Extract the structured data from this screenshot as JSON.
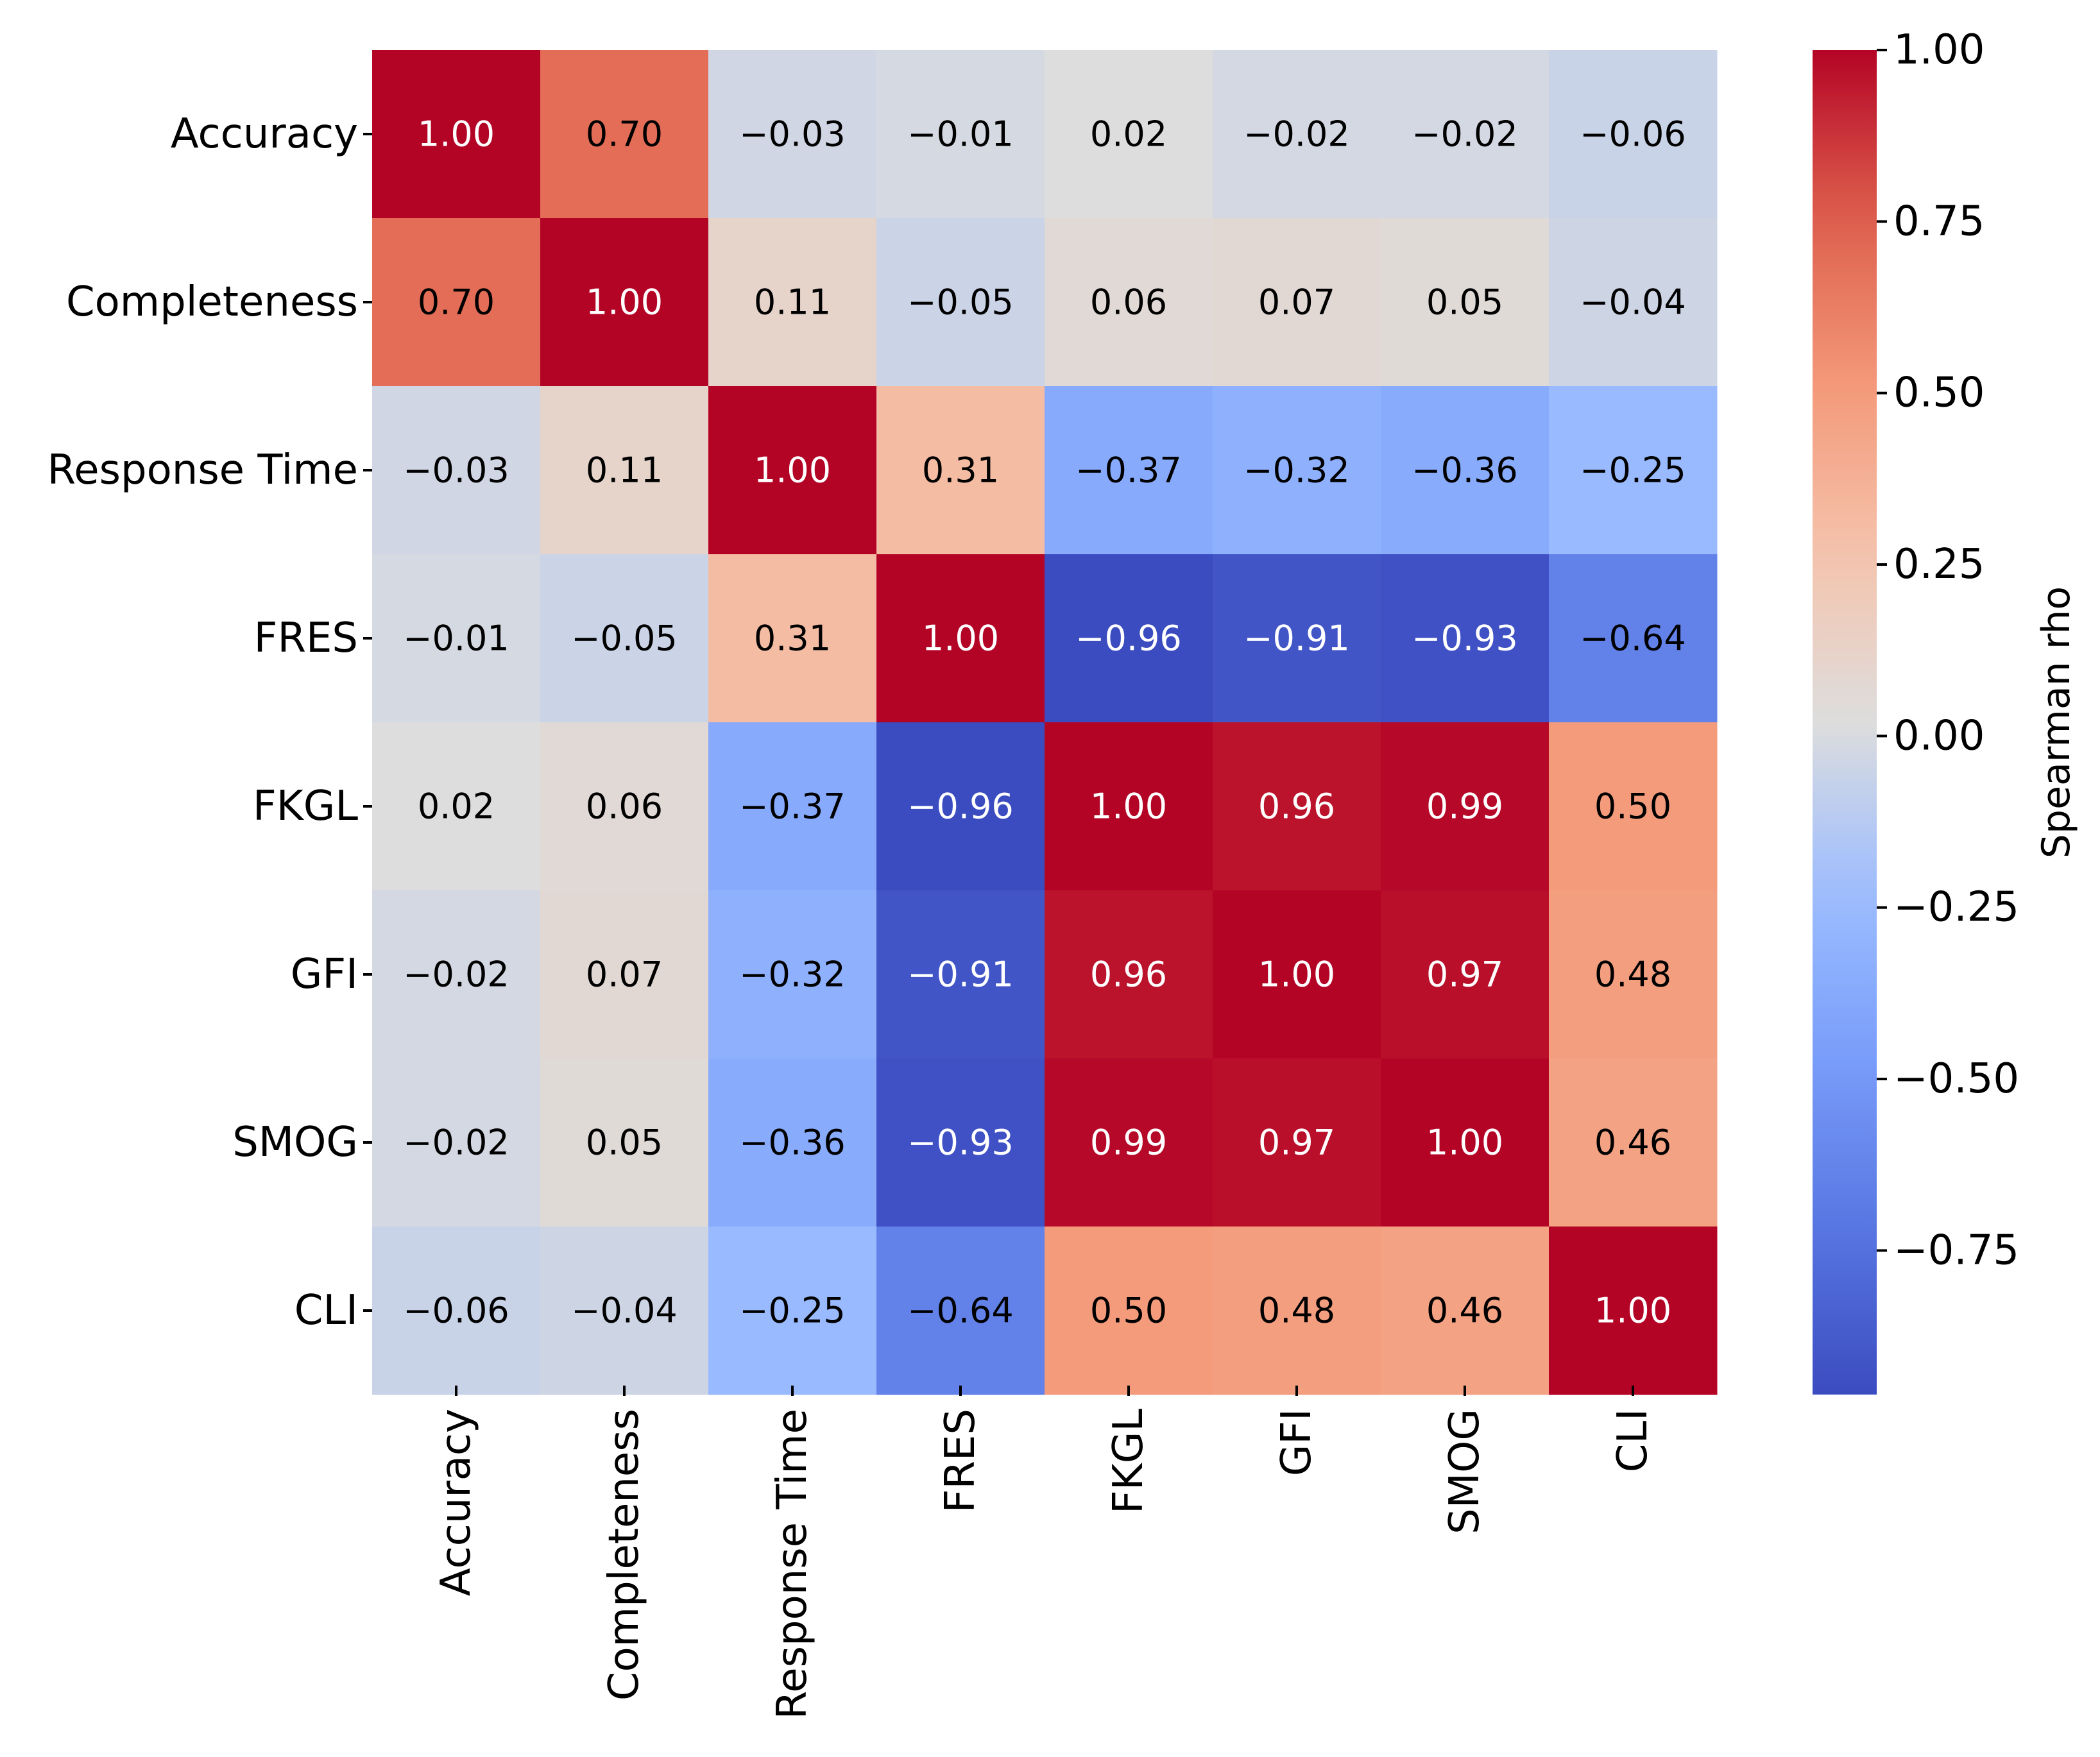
{
  "chart_data": {
    "type": "heatmap",
    "title": "",
    "xlabel": "",
    "ylabel": "",
    "categories": [
      "Accuracy",
      "Completeness",
      "Response Time",
      "FRES",
      "FKGL",
      "GFI",
      "SMOG",
      "CLI"
    ],
    "rows": [
      "Accuracy",
      "Completeness",
      "Response Time",
      "FRES",
      "FKGL",
      "GFI",
      "SMOG",
      "CLI"
    ],
    "values": [
      [
        1.0,
        0.7,
        -0.03,
        -0.01,
        0.02,
        -0.02,
        -0.02,
        -0.06
      ],
      [
        0.7,
        1.0,
        0.11,
        -0.05,
        0.06,
        0.07,
        0.05,
        -0.04
      ],
      [
        -0.03,
        0.11,
        1.0,
        0.31,
        -0.37,
        -0.32,
        -0.36,
        -0.25
      ],
      [
        -0.01,
        -0.05,
        0.31,
        1.0,
        -0.96,
        -0.91,
        -0.93,
        -0.64
      ],
      [
        0.02,
        0.06,
        -0.37,
        -0.96,
        1.0,
        0.96,
        0.99,
        0.5
      ],
      [
        -0.02,
        0.07,
        -0.32,
        -0.91,
        0.96,
        1.0,
        0.97,
        0.48
      ],
      [
        -0.02,
        0.05,
        -0.36,
        -0.93,
        0.99,
        0.97,
        1.0,
        0.46
      ],
      [
        -0.06,
        -0.04,
        -0.25,
        -0.64,
        0.5,
        0.48,
        0.46,
        1.0
      ]
    ],
    "value_labels": [
      [
        "1.00",
        "0.70",
        "−0.03",
        "−0.01",
        "0.02",
        "−0.02",
        "−0.02",
        "−0.06"
      ],
      [
        "0.70",
        "1.00",
        "0.11",
        "−0.05",
        "0.06",
        "0.07",
        "0.05",
        "−0.04"
      ],
      [
        "−0.03",
        "0.11",
        "1.00",
        "0.31",
        "−0.37",
        "−0.32",
        "−0.36",
        "−0.25"
      ],
      [
        "−0.01",
        "−0.05",
        "0.31",
        "1.00",
        "−0.96",
        "−0.91",
        "−0.93",
        "−0.64"
      ],
      [
        "0.02",
        "0.06",
        "−0.37",
        "−0.96",
        "1.00",
        "0.96",
        "0.99",
        "0.50"
      ],
      [
        "−0.02",
        "0.07",
        "−0.32",
        "−0.91",
        "0.96",
        "1.00",
        "0.97",
        "0.48"
      ],
      [
        "−0.02",
        "0.05",
        "−0.36",
        "−0.93",
        "0.99",
        "0.97",
        "1.00",
        "0.46"
      ],
      [
        "−0.06",
        "−0.04",
        "−0.25",
        "−0.64",
        "0.50",
        "0.48",
        "0.46",
        "1.00"
      ]
    ],
    "colormap": "coolwarm",
    "vmin": -0.96,
    "vmax": 1.0,
    "colorbar": {
      "label": "Spearman rho",
      "ticks": [
        1.0,
        0.75,
        0.5,
        0.25,
        0.0,
        -0.25,
        -0.5,
        -0.75
      ],
      "tick_labels": [
        "1.00",
        "0.75",
        "0.50",
        "0.25",
        "0.00",
        "−0.25",
        "−0.50",
        "−0.75"
      ],
      "position": "right"
    },
    "annotation_colors": {
      "dark": "#000000",
      "light": "#ffffff"
    }
  }
}
